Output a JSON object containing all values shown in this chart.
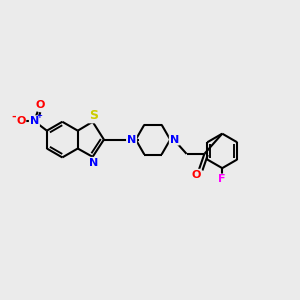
{
  "bg_color": "#ebebeb",
  "bond_color": "#000000",
  "bond_width": 1.5,
  "atom_colors": {
    "N": "#0000ff",
    "O": "#ff0000",
    "S": "#cccc00",
    "F": "#ff00ff",
    "C": "#000000"
  },
  "font_size": 8,
  "figsize": [
    3.0,
    3.0
  ],
  "dpi": 100
}
